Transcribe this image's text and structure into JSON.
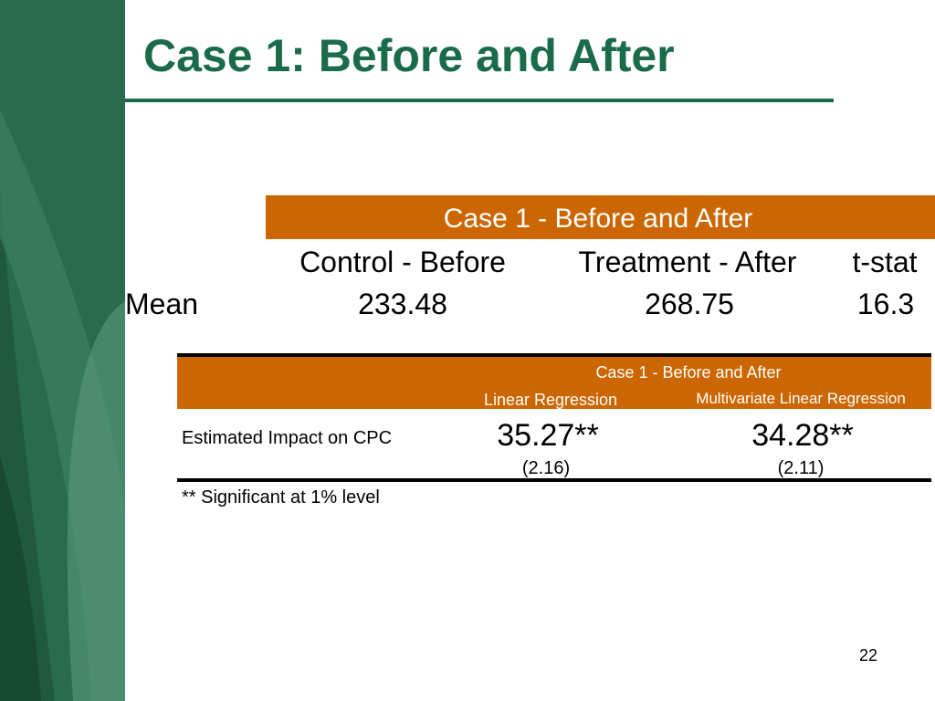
{
  "title": "Case 1: Before and After",
  "table1": {
    "caption": "Case 1 - Before and After",
    "headers": [
      "Control - Before",
      "Treatment - After",
      "t-stat"
    ],
    "rows": [
      [
        "Mean",
        "233.48",
        "268.75",
        "16.3"
      ]
    ]
  },
  "table2": {
    "caption": "Case 1 - Before and After",
    "headers": [
      "Linear Regression",
      "Multivariate Linear Regression"
    ],
    "rows": [
      {
        "label": "Estimated Impact on CPC",
        "cells": [
          {
            "estimate": "35.27**",
            "se": "(2.16)"
          },
          {
            "estimate": "34.28**",
            "se": "(2.11)"
          }
        ]
      }
    ],
    "footnote": "** Significant at 1% level"
  },
  "page_number": "22"
}
